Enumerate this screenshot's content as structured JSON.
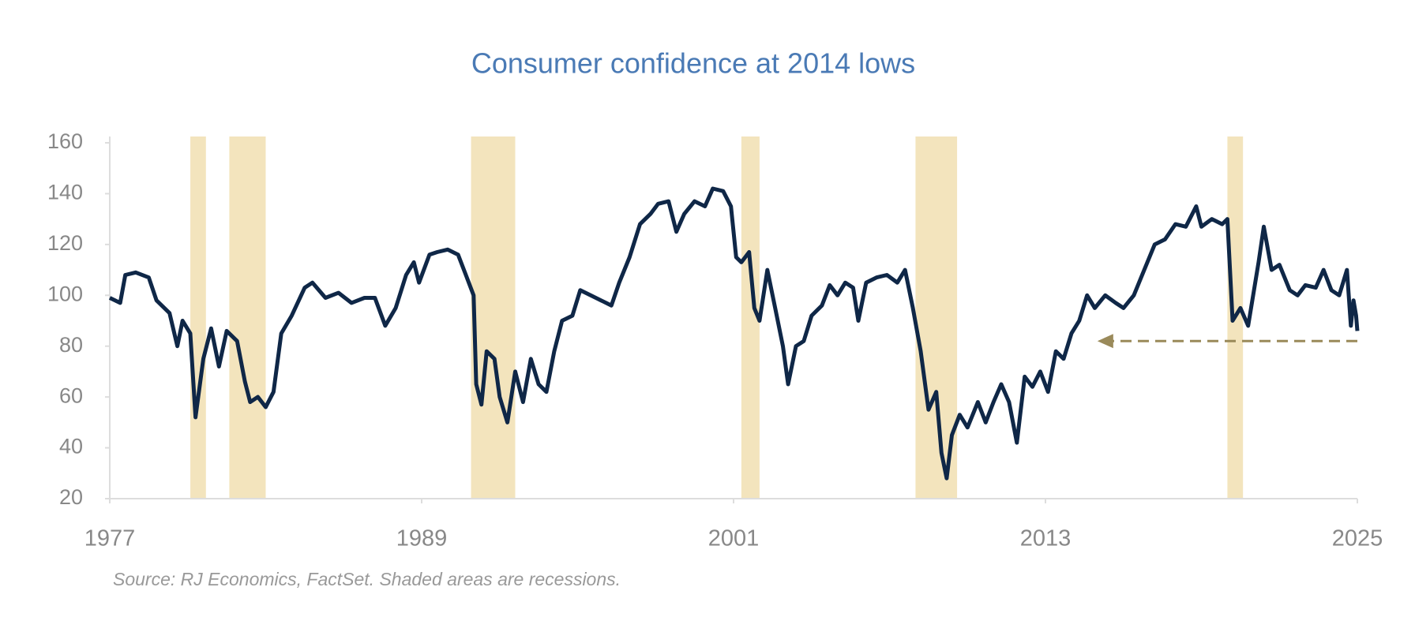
{
  "chart_data": {
    "type": "line",
    "title": "Consumer confidence at 2014 lows",
    "source": "Source: RJ Economics, FactSet. Shaded areas are recessions.",
    "x": [
      1977.0,
      1977.4,
      1977.6,
      1978.0,
      1978.5,
      1978.8,
      1979.3,
      1979.6,
      1979.8,
      1980.1,
      1980.3,
      1980.6,
      1980.9,
      1981.2,
      1981.5,
      1981.9,
      1982.2,
      1982.4,
      1982.7,
      1983.0,
      1983.3,
      1983.6,
      1984.0,
      1984.5,
      1984.8,
      1985.3,
      1985.8,
      1986.3,
      1986.8,
      1987.2,
      1987.6,
      1988.0,
      1988.4,
      1988.7,
      1988.9,
      1989.3,
      1989.6,
      1990.0,
      1990.4,
      1990.7,
      1991.0,
      1991.1,
      1991.3,
      1991.5,
      1991.8,
      1992.0,
      1992.3,
      1992.6,
      1992.9,
      1993.2,
      1993.5,
      1993.8,
      1994.1,
      1994.4,
      1994.8,
      1995.1,
      1995.5,
      1995.9,
      1996.3,
      1996.6,
      1997.0,
      1997.4,
      1997.8,
      1998.1,
      1998.5,
      1998.8,
      1999.1,
      1999.5,
      1999.9,
      2000.2,
      2000.6,
      2000.9,
      2001.1,
      2001.3,
      2001.6,
      2001.8,
      2002.0,
      2002.3,
      2002.6,
      2002.9,
      2003.1,
      2003.4,
      2003.7,
      2004.0,
      2004.4,
      2004.7,
      2005.0,
      2005.3,
      2005.6,
      2005.8,
      2006.1,
      2006.5,
      2006.9,
      2007.3,
      2007.6,
      2007.9,
      2008.2,
      2008.5,
      2008.8,
      2009.0,
      2009.2,
      2009.4,
      2009.7,
      2010.0,
      2010.4,
      2010.7,
      2011.0,
      2011.3,
      2011.6,
      2011.9,
      2012.2,
      2012.5,
      2012.8,
      2013.1,
      2013.4,
      2013.7,
      2014.0,
      2014.3,
      2014.6,
      2014.9,
      2015.3,
      2015.7,
      2016.0,
      2016.4,
      2016.8,
      2017.2,
      2017.6,
      2018.0,
      2018.4,
      2018.8,
      2019.0,
      2019.4,
      2019.8,
      2020.0,
      2020.2,
      2020.5,
      2020.8,
      2021.2,
      2021.4,
      2021.7,
      2022.0,
      2022.4,
      2022.7,
      2023.0,
      2023.4,
      2023.7,
      2024.0,
      2024.3,
      2024.6,
      2024.75,
      2024.85,
      2024.95,
      2025.0
    ],
    "series": [
      {
        "color": "#0f2747",
        "values": [
          99,
          97,
          108,
          109,
          107,
          98,
          93,
          80,
          90,
          85,
          52,
          75,
          87,
          72,
          86,
          82,
          66,
          58,
          60,
          56,
          62,
          85,
          92,
          103,
          105,
          99,
          101,
          97,
          99,
          99,
          88,
          95,
          108,
          113,
          105,
          116,
          117,
          118,
          116,
          108,
          100,
          65,
          57,
          78,
          75,
          60,
          50,
          70,
          58,
          75,
          65,
          62,
          78,
          90,
          92,
          102,
          100,
          98,
          96,
          105,
          115,
          128,
          132,
          136,
          137,
          125,
          132,
          137,
          135,
          142,
          141,
          135,
          115,
          113,
          117,
          95,
          90,
          110,
          95,
          80,
          65,
          80,
          82,
          92,
          96,
          104,
          100,
          105,
          103,
          90,
          105,
          107,
          108,
          105,
          110,
          95,
          78,
          55,
          62,
          38,
          28,
          45,
          53,
          48,
          58,
          50,
          58,
          65,
          58,
          42,
          68,
          64,
          70,
          62,
          78,
          75,
          85,
          90,
          100,
          95,
          100,
          97,
          95,
          100,
          110,
          120,
          122,
          128,
          127,
          135,
          127,
          130,
          128,
          130,
          90,
          95,
          88,
          113,
          127,
          110,
          112,
          102,
          100,
          104,
          103,
          110,
          102,
          100,
          110,
          88,
          98,
          92,
          86
        ]
      }
    ],
    "recessions": [
      [
        1980.1,
        1980.7
      ],
      [
        1981.6,
        1983.0
      ],
      [
        1990.9,
        1992.6
      ],
      [
        2001.3,
        2002.0
      ],
      [
        2008.0,
        2009.6
      ],
      [
        2020.0,
        2020.6
      ]
    ],
    "recession_color": "#f3e4bd",
    "reference_arrow": {
      "y": 82,
      "x_from": 2025,
      "x_to": 2015.0,
      "color": "#9a8a5a"
    },
    "xlim": [
      1977,
      2025
    ],
    "xticks": [
      1977,
      1989,
      2001,
      2013,
      2025
    ],
    "ylim": [
      20,
      160
    ],
    "yticks": [
      20,
      40,
      60,
      80,
      100,
      120,
      140,
      160
    ]
  }
}
